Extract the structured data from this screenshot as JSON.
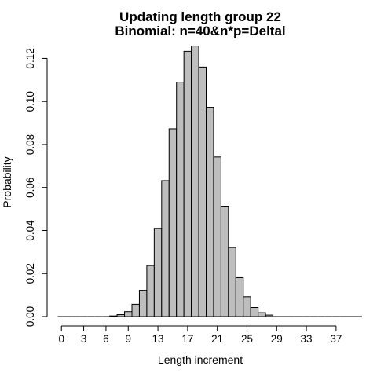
{
  "chart_data": {
    "type": "bar",
    "title": "Updating length group 22",
    "subtitle": "Binomial: n=40&n*p=Deltal",
    "xlabel": "Length increment",
    "ylabel": "Probability",
    "categories": [
      0,
      1,
      2,
      3,
      4,
      5,
      6,
      7,
      8,
      9,
      10,
      11,
      12,
      13,
      14,
      15,
      16,
      17,
      18,
      19,
      20,
      21,
      22,
      23,
      24,
      25,
      26,
      27,
      28,
      29,
      30,
      31,
      32,
      33,
      34,
      35,
      36,
      37,
      38,
      39,
      40
    ],
    "x_tick_labels": [
      "0",
      "3",
      "6",
      "9",
      "13",
      "17",
      "21",
      "25",
      "29",
      "33",
      "37"
    ],
    "x_tick_values": [
      0,
      3,
      6,
      9,
      13,
      17,
      21,
      25,
      29,
      33,
      37
    ],
    "y_tick_labels": [
      "0.00",
      "0.02",
      "0.04",
      "0.06",
      "0.08",
      "0.10",
      "0.12"
    ],
    "y_tick_values": [
      0,
      0.02,
      0.04,
      0.06,
      0.08,
      0.1,
      0.12
    ],
    "ylim": [
      0,
      0.126
    ],
    "values": [
      0,
      0,
      0,
      0,
      0,
      0,
      0.0002,
      0.0003,
      0.0009,
      0.0023,
      0.0057,
      0.0122,
      0.0237,
      0.041,
      0.0632,
      0.0873,
      0.109,
      0.1233,
      0.1258,
      0.116,
      0.0973,
      0.0742,
      0.0513,
      0.0321,
      0.0181,
      0.0092,
      0.0042,
      0.0018,
      0.0007,
      0.0002,
      0.0001,
      0,
      0,
      0,
      0,
      0,
      0,
      0,
      0,
      0,
      0
    ],
    "grid": false,
    "legend": "none"
  }
}
